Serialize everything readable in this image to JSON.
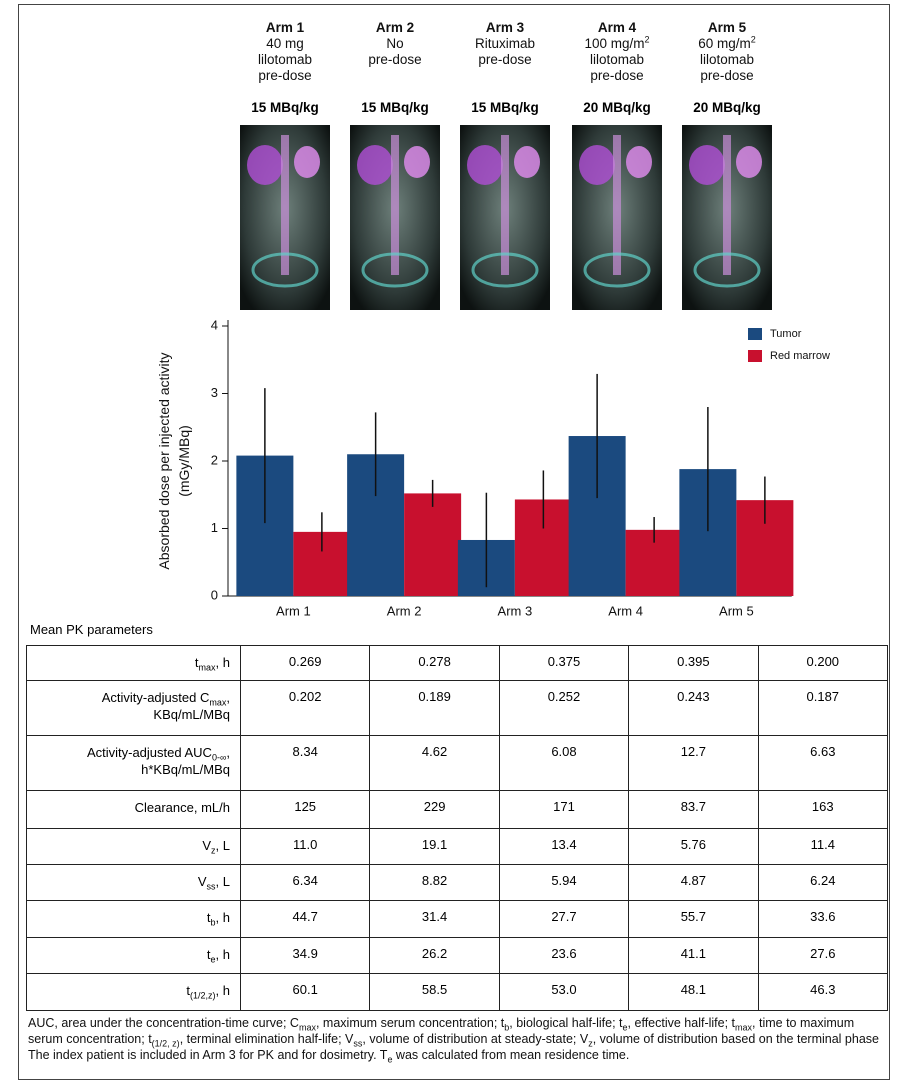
{
  "arms": [
    {
      "title": "Arm 1",
      "lines": [
        [
          "40 mg"
        ],
        [
          "lilotomab"
        ],
        [
          "pre-dose"
        ]
      ],
      "dose": "15 MBq/kg"
    },
    {
      "title": "Arm 2",
      "lines": [
        [
          "No"
        ],
        [
          "pre-dose"
        ]
      ],
      "dose": "15 MBq/kg"
    },
    {
      "title": "Arm 3",
      "lines": [
        [
          "Rituximab"
        ],
        [
          "pre-dose"
        ]
      ],
      "dose": "15 MBq/kg"
    },
    {
      "title": "Arm 4",
      "lines": [
        [
          "100 mg/m",
          {
            "sup": "2"
          }
        ],
        [
          "lilotomab"
        ],
        [
          "pre-dose"
        ]
      ],
      "dose": "20 MBq/kg"
    },
    {
      "title": "Arm 5",
      "lines": [
        [
          "60 mg/m",
          {
            "sup": "2"
          }
        ],
        [
          "lilotomab"
        ],
        [
          "pre-dose"
        ]
      ],
      "dose": "20 MBq/kg"
    }
  ],
  "chart_data": {
    "type": "bar",
    "y_label": [
      "Absorbed dose per injected activity",
      "(mGy/MBq)"
    ],
    "categories": [
      "Arm 1",
      "Arm 2",
      "Arm 3",
      "Arm 4",
      "Arm 5"
    ],
    "series": [
      {
        "name": "Tumor",
        "color": "#1b4a7f",
        "values": [
          2.08,
          2.1,
          0.83,
          2.37,
          1.88
        ],
        "errors": [
          1.0,
          0.62,
          0.7,
          0.92,
          0.92
        ]
      },
      {
        "name": "Red marrow",
        "color": "#c8102e",
        "values": [
          0.95,
          1.52,
          1.43,
          0.98,
          1.42
        ],
        "errors": [
          0.29,
          0.2,
          0.43,
          0.19,
          0.35
        ]
      }
    ],
    "ylim": [
      0,
      4
    ],
    "yticks": [
      0,
      1,
      2,
      3,
      4
    ],
    "legend": "upper right"
  },
  "table": {
    "caption": "Mean PK parameters",
    "rows": [
      {
        "label": [
          [
            "t",
            {
              "sub": "max"
            },
            ", h"
          ]
        ],
        "values": [
          "0.269",
          "0.278",
          "0.375",
          "0.395",
          "0.200"
        ]
      },
      {
        "label": [
          [
            "Activity-adjusted C",
            {
              "sub": "max"
            },
            ","
          ],
          [
            "KBq/mL/MBq"
          ]
        ],
        "values": [
          "0.202",
          "0.189",
          "0.252",
          "0.243",
          "0.187"
        ]
      },
      {
        "label": [
          [
            "Activity-adjusted AUC",
            {
              "sub": "0-∞"
            },
            ","
          ],
          [
            "h*KBq/mL/MBq"
          ]
        ],
        "values": [
          "8.34",
          "4.62",
          "6.08",
          "12.7",
          "6.63"
        ]
      },
      {
        "label": [
          [
            "Clearance, mL/h"
          ]
        ],
        "values": [
          "125",
          "229",
          "171",
          "83.7",
          "163"
        ]
      },
      {
        "label": [
          [
            "V",
            {
              "sub": "z"
            },
            ", L"
          ]
        ],
        "values": [
          "11.0",
          "19.1",
          "13.4",
          "5.76",
          "11.4"
        ]
      },
      {
        "label": [
          [
            "V",
            {
              "sub": "ss"
            },
            ", L"
          ]
        ],
        "values": [
          "6.34",
          "8.82",
          "5.94",
          "4.87",
          "6.24"
        ]
      },
      {
        "label": [
          [
            "t",
            {
              "sub": "b"
            },
            ", h"
          ]
        ],
        "values": [
          "44.7",
          "31.4",
          "27.7",
          "55.7",
          "33.6"
        ]
      },
      {
        "label": [
          [
            "t",
            {
              "sub": "e"
            },
            ", h"
          ]
        ],
        "values": [
          "34.9",
          "26.2",
          "23.6",
          "41.1",
          "27.6"
        ]
      },
      {
        "label": [
          [
            "t",
            {
              "sub": "(1/2,z)"
            },
            ", h"
          ]
        ],
        "values": [
          "60.1",
          "58.5",
          "53.0",
          "48.1",
          "46.3"
        ]
      }
    ]
  },
  "notes": [
    [
      [
        "AUC, area under the concentration-time curve; C",
        {
          "sub": "max"
        },
        ", maximum serum concentration; t",
        {
          "sub": "b"
        },
        ", biological half-life; t",
        {
          "sub": "e"
        },
        ", effective half-life; t",
        {
          "sub": "max"
        },
        ", time to maximum serum concentration; t",
        {
          "sub": "(1/2, z)"
        },
        ", terminal elimination half-life; V",
        {
          "sub": "ss"
        },
        ", volume of distribution at steady-state; V",
        {
          "sub": "z"
        },
        ", volume of distribution based on the terminal phase"
      ]
    ],
    [
      [
        "The index patient is included in Arm 3 for PK and for dosimetry. T",
        {
          "sub": "e"
        },
        " was calculated from mean residence time."
      ]
    ]
  ]
}
